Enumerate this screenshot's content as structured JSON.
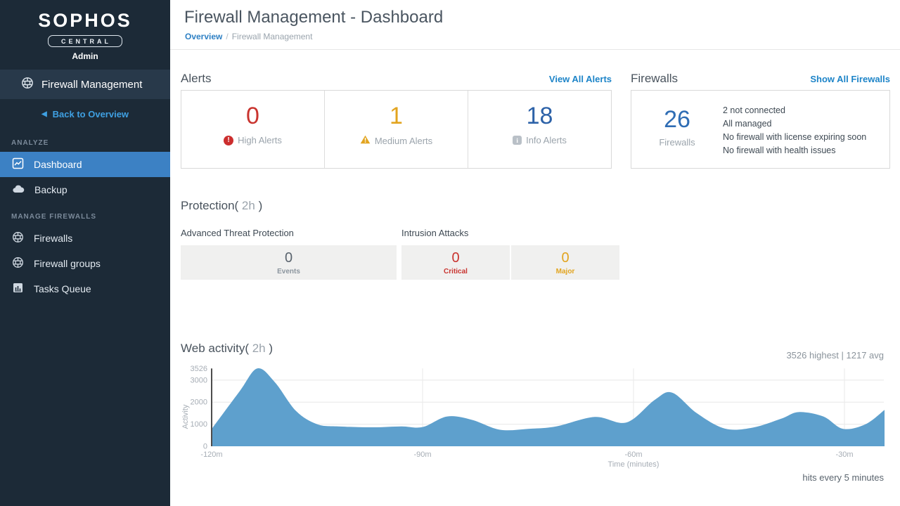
{
  "colors": {
    "accent_link": "#1d84c8",
    "nav_active": "#3c81c4",
    "alert_high": "#c9342f",
    "alert_medium": "#e2a41f",
    "alert_info": "#2d62a8",
    "firewall_count": "#2f6db4",
    "chart_fill": "#5ea0cd"
  },
  "sidebar": {
    "brand": "SOPHOS",
    "badge": "CENTRAL",
    "role": "Admin",
    "product": "Firewall Management",
    "back_arrow": "◀",
    "back_link": "Back to Overview",
    "section_analyze": "ANALYZE",
    "section_manage": "MANAGE FIREWALLS",
    "nav": [
      {
        "label": "Dashboard",
        "active": true
      },
      {
        "label": "Backup",
        "active": false
      },
      {
        "label": "Firewalls",
        "active": false
      },
      {
        "label": "Firewall groups",
        "active": false
      },
      {
        "label": "Tasks Queue",
        "active": false
      }
    ]
  },
  "header": {
    "title": "Firewall Management - Dashboard",
    "breadcrumb_link": "Overview",
    "breadcrumb_sep": "/",
    "breadcrumb_current": "Firewall Management"
  },
  "alerts": {
    "title": "Alerts",
    "link": "View All Alerts",
    "items": [
      {
        "value": "0",
        "label": "High Alerts",
        "icon": "high-alert-icon"
      },
      {
        "value": "1",
        "label": "Medium Alerts",
        "icon": "medium-alert-icon"
      },
      {
        "value": "18",
        "label": "Info Alerts",
        "icon": "info-alert-icon"
      }
    ],
    "high_icon_glyph": "!",
    "info_icon_glyph": "i"
  },
  "firewalls": {
    "title": "Firewalls",
    "link": "Show All Firewalls",
    "count": "26",
    "count_label": "Firewalls",
    "details": [
      "2 not connected",
      "All managed",
      "No firewall with license expiring soon",
      "No firewall with health issues"
    ]
  },
  "protection": {
    "title_open": "Protection(",
    "title_time": " 2h ",
    "title_close": ")",
    "atp_label": "Advanced Threat Protection",
    "atp_value": "0",
    "atp_sub": "Events",
    "intrusion_label": "Intrusion Attacks",
    "intrusion_cells": [
      {
        "value": "0",
        "sub": "Critical"
      },
      {
        "value": "0",
        "sub": "Major"
      }
    ]
  },
  "web_activity": {
    "title_open": "Web activity(",
    "title_time": " 2h ",
    "title_close": ")"
  },
  "chart_data": {
    "type": "area",
    "title": "Web activity( 2h )",
    "stats": "3526 highest | 1217 avg",
    "footnote": "hits every 5 minutes",
    "xlabel": "Time (minutes)",
    "ylabel": "Activity",
    "legend": "none",
    "grid": true,
    "xlim": [
      -120,
      -24
    ],
    "ylim": [
      0,
      3526
    ],
    "x_ticks": [
      "-120m",
      "-90m",
      "-60m",
      "-30m"
    ],
    "x_tick_minutes": [
      -120,
      -90,
      -60,
      -30
    ],
    "y_ticks": [
      "0",
      "1000",
      "2000",
      "3000",
      "3526"
    ],
    "y_tick_values": [
      0,
      1000,
      2000,
      3000,
      3526
    ],
    "y_grid": [
      1000,
      2000,
      3000
    ],
    "x": [
      -120,
      -116,
      -113.5,
      -111,
      -108,
      -105,
      -102,
      -97,
      -93,
      -90,
      -86.5,
      -83,
      -79,
      -75,
      -71,
      -65.5,
      -61,
      -57,
      -54.5,
      -51,
      -47,
      -43,
      -39,
      -36.5,
      -33,
      -30.2,
      -27,
      -24.3
    ],
    "y": [
      780,
      2500,
      3526,
      2900,
      1600,
      1000,
      900,
      860,
      900,
      870,
      1350,
      1200,
      750,
      790,
      900,
      1330,
      1080,
      2100,
      2430,
      1500,
      800,
      850,
      1250,
      1550,
      1350,
      790,
      1000,
      1650
    ]
  }
}
